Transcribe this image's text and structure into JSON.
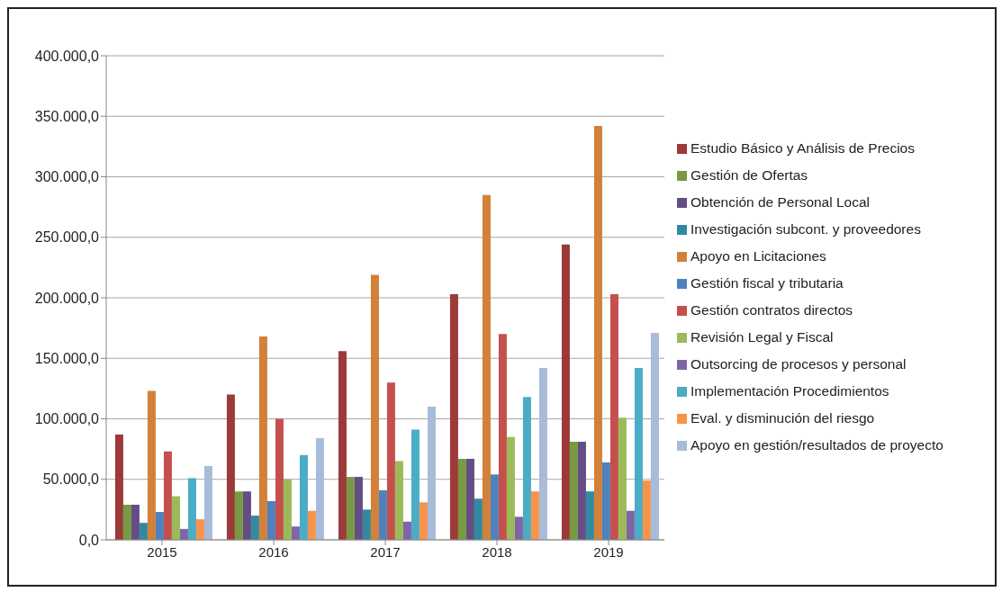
{
  "chart_data": {
    "type": "bar",
    "categories": [
      "2015",
      "2016",
      "2017",
      "2018",
      "2019"
    ],
    "series": [
      {
        "name": "Estudio Básico y Análisis de Precios",
        "color": "#9b3a38",
        "values": [
          87000,
          120000,
          156000,
          203000,
          244000
        ]
      },
      {
        "name": "Gestión de Ofertas",
        "color": "#789a42",
        "values": [
          29000,
          40000,
          52000,
          67000,
          81000
        ]
      },
      {
        "name": "Obtención de Personal Local",
        "color": "#644d84",
        "values": [
          29000,
          40000,
          52000,
          67000,
          81000
        ]
      },
      {
        "name": "Investigación subcont. y proveedores",
        "color": "#318aa0",
        "values": [
          14000,
          20000,
          25000,
          34000,
          40000
        ]
      },
      {
        "name": "Apoyo en Licitaciones",
        "color": "#d2803a",
        "values": [
          123000,
          168000,
          219000,
          285000,
          342000
        ]
      },
      {
        "name": "Gestión fiscal y tributaria",
        "color": "#4f81bd",
        "values": [
          23000,
          32000,
          41000,
          54000,
          64000
        ]
      },
      {
        "name": "Gestión contratos directos",
        "color": "#c4504e",
        "values": [
          73000,
          100000,
          130000,
          170000,
          203000
        ]
      },
      {
        "name": "Revisión Legal y Fiscal",
        "color": "#9bbb59",
        "values": [
          36000,
          50000,
          65000,
          85000,
          101000
        ]
      },
      {
        "name": "Outsorcing de procesos y personal",
        "color": "#8064a8",
        "values": [
          9000,
          11000,
          15000,
          19000,
          24000
        ]
      },
      {
        "name": "Implementación Procedimientos",
        "color": "#4bacc6",
        "values": [
          51000,
          70000,
          91000,
          118000,
          142000
        ]
      },
      {
        "name": "Eval. y disminución del riesgo",
        "color": "#f7944a",
        "values": [
          17000,
          24000,
          31000,
          40000,
          49000
        ]
      },
      {
        "name": "Apoyo en gestión/resultados de proyecto",
        "color": "#a8bbd9",
        "values": [
          61000,
          84000,
          110000,
          142000,
          171000
        ]
      }
    ],
    "ylim": [
      0,
      400000
    ],
    "yticks": [
      {
        "value": 0,
        "label": "0,0"
      },
      {
        "value": 50000,
        "label": "50.000,0"
      },
      {
        "value": 100000,
        "label": "100.000,0"
      },
      {
        "value": 150000,
        "label": "150.000,0"
      },
      {
        "value": 200000,
        "label": "200.000,0"
      },
      {
        "value": 250000,
        "label": "250.000,0"
      },
      {
        "value": 300000,
        "label": "300.000,0"
      },
      {
        "value": 350000,
        "label": "350.000,0"
      },
      {
        "value": 400000,
        "label": "400.000,0"
      }
    ],
    "grid": "y",
    "legend": "right"
  }
}
